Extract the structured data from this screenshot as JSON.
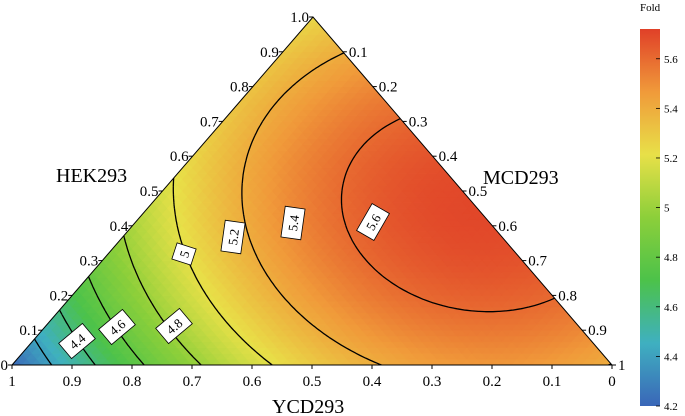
{
  "chart_data": {
    "type": "ternary-contour",
    "axes": {
      "left": {
        "label": "HEK293",
        "ticks": [
          "0",
          "0.1",
          "0.2",
          "0.3",
          "0.4",
          "0.5",
          "0.6",
          "0.7",
          "0.8",
          "0.9",
          "1.0"
        ]
      },
      "right": {
        "label": "MCD293",
        "ticks": [
          "0.1",
          "0.2",
          "0.3",
          "0.4",
          "0.5",
          "0.6",
          "0.7",
          "0.8",
          "0.9",
          "1"
        ]
      },
      "bottom": {
        "label": "YCD293",
        "ticks": [
          "1",
          "0.9",
          "0.8",
          "0.7",
          "0.6",
          "0.5",
          "0.4",
          "0.3",
          "0.2",
          "0.1",
          "0"
        ]
      }
    },
    "model": {
      "max_value": 5.7,
      "max_at": {
        "HEK293": 0.45,
        "MCD293": 0.55,
        "YCD293": 0.0
      },
      "min_value": 4.2,
      "min_at": {
        "HEK293": 0.0,
        "MCD293": 0.0,
        "YCD293": 1.0
      }
    },
    "contours": [
      {
        "level": 4.4,
        "label": "4.4"
      },
      {
        "level": 4.6,
        "label": "4.6"
      },
      {
        "level": 4.8,
        "label": "4.8"
      },
      {
        "level": 5.0,
        "label": "5"
      },
      {
        "level": 5.2,
        "label": "5.2"
      },
      {
        "level": 5.4,
        "label": "5.4"
      },
      {
        "level": 5.6,
        "label": "5.6"
      }
    ],
    "colorbar": {
      "title": "Fold",
      "range": [
        4.2,
        5.72
      ],
      "ticks": [
        "4.2",
        "4.4",
        "4.6",
        "4.8",
        "5",
        "5.2",
        "5.4",
        "5.6"
      ],
      "colormap": [
        "#3a66b8",
        "#3fb0c0",
        "#4cc24a",
        "#8ccf3a",
        "#e8e048",
        "#f09a3a",
        "#e04028"
      ]
    }
  }
}
